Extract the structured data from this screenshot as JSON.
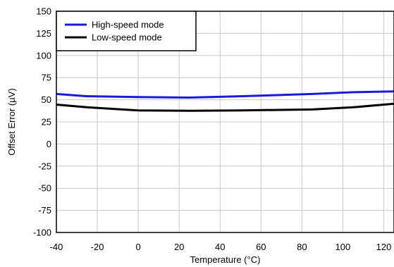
{
  "chart_data": {
    "type": "line",
    "title": "",
    "xlabel": "Temperature (°C)",
    "ylabel": "Offset Error  (µV)",
    "xlim": [
      -40,
      125
    ],
    "ylim": [
      -100,
      150
    ],
    "xticks": [
      -40,
      -20,
      0,
      20,
      40,
      60,
      80,
      100,
      120
    ],
    "yticks": [
      150,
      125,
      100,
      75,
      50,
      25,
      0,
      -25,
      -50,
      -75,
      -100
    ],
    "grid": true,
    "legend_position": "top-left",
    "series": [
      {
        "name": "High-speed mode",
        "color": "#1a1adc",
        "x": [
          -40,
          -25,
          0,
          25,
          50,
          85,
          105,
          125
        ],
        "y": [
          56.5,
          54,
          53,
          52.5,
          54,
          56.5,
          58.5,
          59.5
        ]
      },
      {
        "name": "Low-speed mode",
        "color": "#000000",
        "x": [
          -40,
          -25,
          0,
          25,
          50,
          85,
          105,
          125
        ],
        "y": [
          44.5,
          41.5,
          38,
          37.5,
          38,
          39,
          41.5,
          45.5
        ]
      }
    ]
  }
}
